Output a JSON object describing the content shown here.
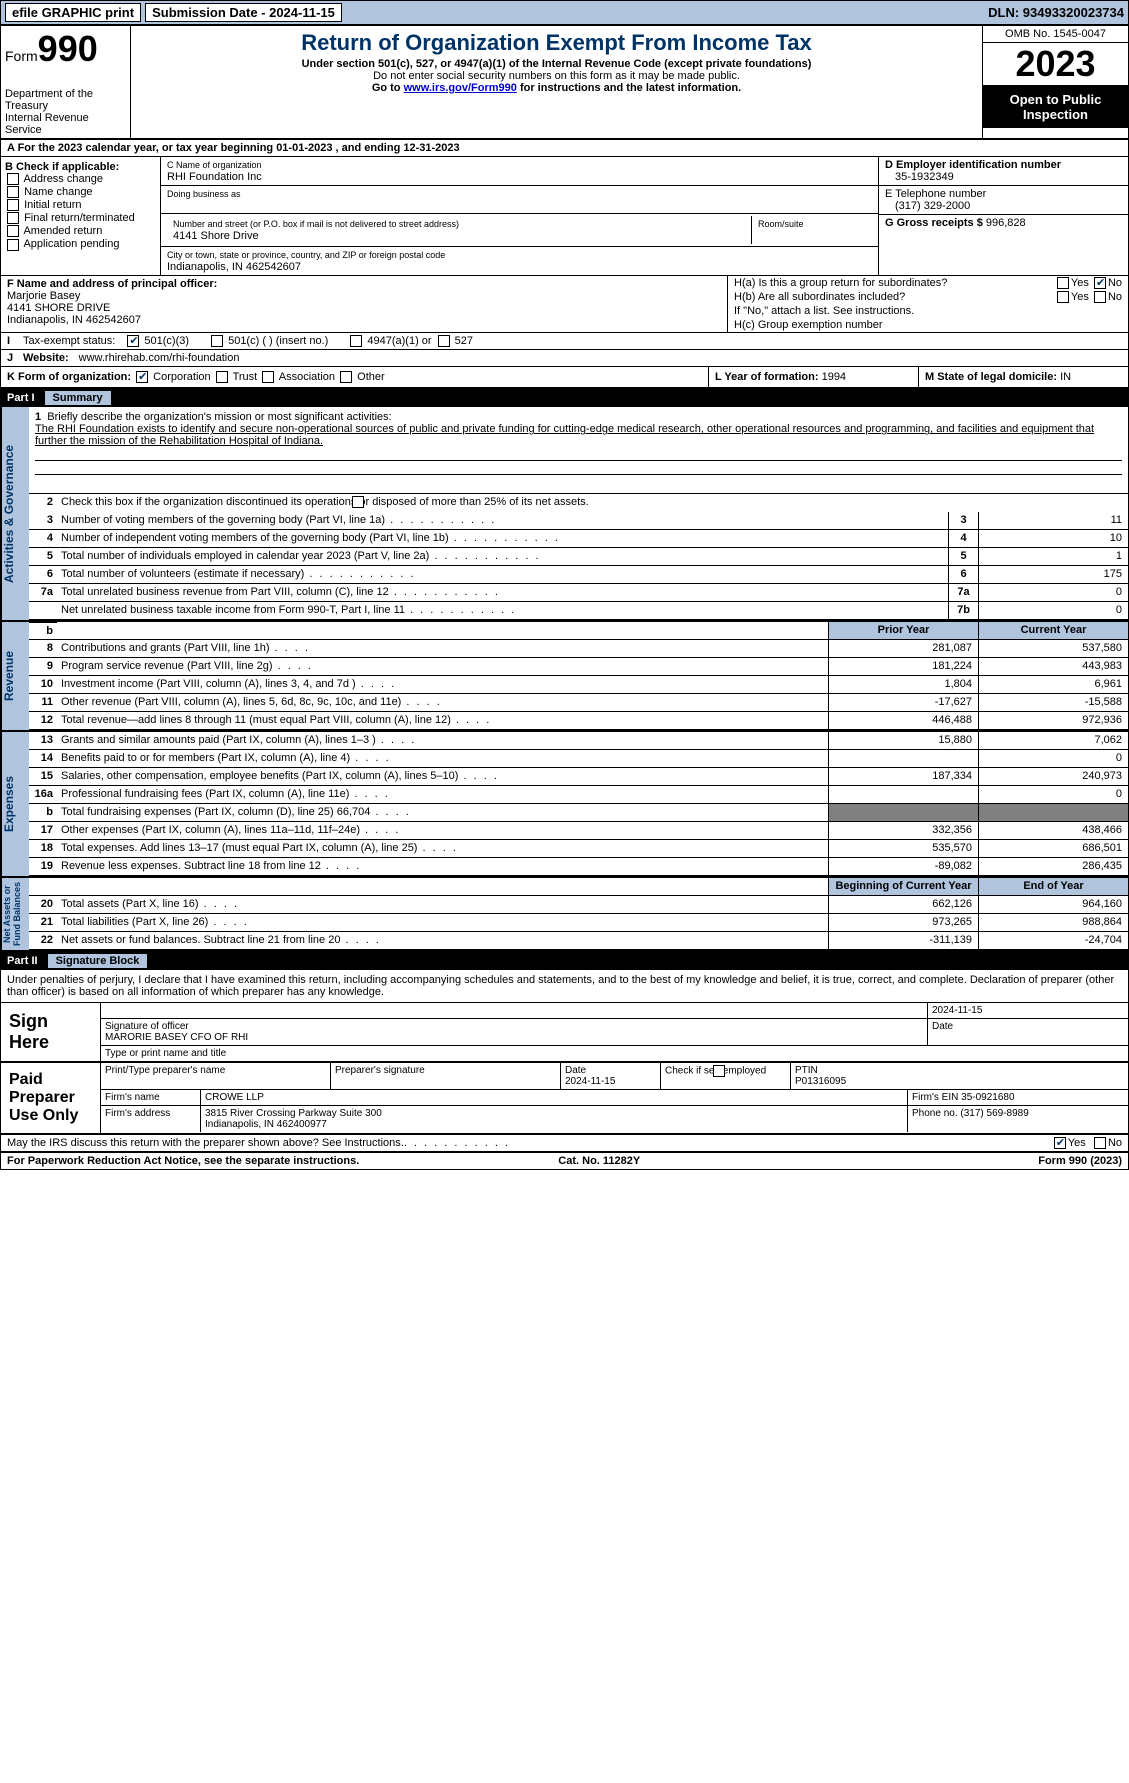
{
  "topbar": {
    "efile": "efile GRAPHIC print",
    "submission": "Submission Date - 2024-11-15",
    "dln": "DLN: 93493320023734"
  },
  "header": {
    "form_word": "Form",
    "form_num": "990",
    "title": "Return of Organization Exempt From Income Tax",
    "subtitle": "Under section 501(c), 527, or 4947(a)(1) of the Internal Revenue Code (except private foundations)",
    "note1": "Do not enter social security numbers on this form as it may be made public.",
    "note2_pre": "Go to ",
    "note2_link": "www.irs.gov/Form990",
    "note2_post": " for instructions and the latest information.",
    "dept": "Department of the Treasury\nInternal Revenue Service",
    "omb": "OMB No. 1545-0047",
    "year": "2023",
    "open": "Open to Public Inspection"
  },
  "a_line": "A For the 2023 calendar year, or tax year beginning 01-01-2023    , and ending 12-31-2023",
  "b": {
    "label": "B Check if applicable:",
    "opts": [
      "Address change",
      "Name change",
      "Initial return",
      "Final return/terminated",
      "Amended return",
      "Application pending"
    ]
  },
  "c": {
    "name_lbl": "C Name of organization",
    "name": "RHI Foundation Inc",
    "dba_lbl": "Doing business as",
    "dba": "",
    "street_lbl": "Number and street (or P.O. box if mail is not delivered to street address)",
    "street": "4141 Shore Drive",
    "room_lbl": "Room/suite",
    "room": "",
    "city_lbl": "City or town, state or province, country, and ZIP or foreign postal code",
    "city": "Indianapolis, IN  462542607"
  },
  "d": {
    "lbl": "D Employer identification number",
    "val": "35-1932349"
  },
  "e": {
    "lbl": "E Telephone number",
    "val": "(317) 329-2000"
  },
  "g": {
    "lbl": "G Gross receipts $",
    "val": "996,828"
  },
  "f": {
    "lbl": "F Name and address of principal officer:",
    "name": "Marjorie Basey",
    "street": "4141 SHORE DRIVE",
    "city": "Indianapolis, IN  462542607"
  },
  "h": {
    "ha": "H(a)  Is this a group return for subordinates?",
    "hb": "H(b)  Are all subordinates included?",
    "hb_note": "If \"No,\" attach a list. See instructions.",
    "hc": "H(c)  Group exemption number",
    "yes": "Yes",
    "no": "No"
  },
  "i": {
    "lbl": "Tax-exempt status:",
    "opts": [
      "501(c)(3)",
      "501(c) (  ) (insert no.)",
      "4947(a)(1) or",
      "527"
    ]
  },
  "j": {
    "lbl": "Website:",
    "val": "www.rhirehab.com/rhi-foundation"
  },
  "k": {
    "lbl": "K Form of organization:",
    "opts": [
      "Corporation",
      "Trust",
      "Association",
      "Other"
    ]
  },
  "l": {
    "lbl": "L Year of formation:",
    "val": "1994"
  },
  "m": {
    "lbl": "M State of legal domicile:",
    "val": "IN"
  },
  "part1": {
    "num": "Part I",
    "title": "Summary"
  },
  "mission": {
    "lbl": "Briefly describe the organization's mission or most significant activities:",
    "text": "The RHI Foundation exists to identify and secure non-operational sources of public and private funding for cutting-edge medical research, other operational resources and programming, and facilities and equipment that further the mission of the Rehabilitation Hospital of Indiana."
  },
  "line2": "Check this box          if the organization discontinued its operations or disposed of more than 25% of its net assets.",
  "gov": {
    "rows": [
      {
        "n": "3",
        "d": "Number of voting members of the governing body (Part VI, line 1a)",
        "box": "3",
        "v": "11"
      },
      {
        "n": "4",
        "d": "Number of independent voting members of the governing body (Part VI, line 1b)",
        "box": "4",
        "v": "10"
      },
      {
        "n": "5",
        "d": "Total number of individuals employed in calendar year 2023 (Part V, line 2a)",
        "box": "5",
        "v": "1"
      },
      {
        "n": "6",
        "d": "Total number of volunteers (estimate if necessary)",
        "box": "6",
        "v": "175"
      },
      {
        "n": "7a",
        "d": "Total unrelated business revenue from Part VIII, column (C), line 12",
        "box": "7a",
        "v": "0"
      },
      {
        "n": "",
        "d": "Net unrelated business taxable income from Form 990-T, Part I, line 11",
        "box": "7b",
        "v": "0"
      }
    ]
  },
  "col_hdr": {
    "prior": "Prior Year",
    "current": "Current Year"
  },
  "rev": {
    "rows": [
      {
        "n": "8",
        "d": "Contributions and grants (Part VIII, line 1h)",
        "p": "281,087",
        "c": "537,580"
      },
      {
        "n": "9",
        "d": "Program service revenue (Part VIII, line 2g)",
        "p": "181,224",
        "c": "443,983"
      },
      {
        "n": "10",
        "d": "Investment income (Part VIII, column (A), lines 3, 4, and 7d )",
        "p": "1,804",
        "c": "6,961"
      },
      {
        "n": "11",
        "d": "Other revenue (Part VIII, column (A), lines 5, 6d, 8c, 9c, 10c, and 11e)",
        "p": "-17,627",
        "c": "-15,588"
      },
      {
        "n": "12",
        "d": "Total revenue—add lines 8 through 11 (must equal Part VIII, column (A), line 12)",
        "p": "446,488",
        "c": "972,936"
      }
    ]
  },
  "exp": {
    "rows": [
      {
        "n": "13",
        "d": "Grants and similar amounts paid (Part IX, column (A), lines 1–3 )",
        "p": "15,880",
        "c": "7,062"
      },
      {
        "n": "14",
        "d": "Benefits paid to or for members (Part IX, column (A), line 4)",
        "p": "",
        "c": "0"
      },
      {
        "n": "15",
        "d": "Salaries, other compensation, employee benefits (Part IX, column (A), lines 5–10)",
        "p": "187,334",
        "c": "240,973"
      },
      {
        "n": "16a",
        "d": "Professional fundraising fees (Part IX, column (A), line 11e)",
        "p": "",
        "c": "0"
      },
      {
        "n": "b",
        "d": "Total fundraising expenses (Part IX, column (D), line 25) 66,704",
        "p": "GRAY",
        "c": "GRAY"
      },
      {
        "n": "17",
        "d": "Other expenses (Part IX, column (A), lines 11a–11d, 11f–24e)",
        "p": "332,356",
        "c": "438,466"
      },
      {
        "n": "18",
        "d": "Total expenses. Add lines 13–17 (must equal Part IX, column (A), line 25)",
        "p": "535,570",
        "c": "686,501"
      },
      {
        "n": "19",
        "d": "Revenue less expenses. Subtract line 18 from line 12",
        "p": "-89,082",
        "c": "286,435"
      }
    ]
  },
  "net_hdr": {
    "begin": "Beginning of Current Year",
    "end": "End of Year"
  },
  "net": {
    "rows": [
      {
        "n": "20",
        "d": "Total assets (Part X, line 16)",
        "p": "662,126",
        "c": "964,160"
      },
      {
        "n": "21",
        "d": "Total liabilities (Part X, line 26)",
        "p": "973,265",
        "c": "988,864"
      },
      {
        "n": "22",
        "d": "Net assets or fund balances. Subtract line 21 from line 20",
        "p": "-311,139",
        "c": "-24,704"
      }
    ]
  },
  "vtabs": {
    "gov": "Activities & Governance",
    "rev": "Revenue",
    "exp": "Expenses",
    "net": "Net Assets or\nFund Balances"
  },
  "part2": {
    "num": "Part II",
    "title": "Signature Block"
  },
  "sig_intro": "Under penalties of perjury, I declare that I have examined this return, including accompanying schedules and statements, and to the best of my knowledge and belief, it is true, correct, and complete. Declaration of preparer (other than officer) is based on all information of which preparer has any knowledge.",
  "sign_here": {
    "lbl": "Sign Here",
    "sig_lbl": "Signature of officer",
    "name": "MARORIE BASEY CFO OF RHI",
    "type_lbl": "Type or print name and title",
    "date_lbl": "Date",
    "date": "2024-11-15"
  },
  "paid": {
    "lbl": "Paid Preparer Use Only",
    "print_lbl": "Print/Type preparer's name",
    "sig_lbl": "Preparer's signature",
    "date_lbl": "Date",
    "date": "2024-11-15",
    "check_lbl": "Check          if self-employed",
    "ptin_lbl": "PTIN",
    "ptin": "P01316095",
    "firm_name_lbl": "Firm's name",
    "firm_name": "CROWE LLP",
    "firm_ein_lbl": "Firm's EIN",
    "firm_ein": "35-0921680",
    "firm_addr_lbl": "Firm's address",
    "firm_addr": "3815 River Crossing Parkway Suite 300\nIndianapolis, IN  462400977",
    "phone_lbl": "Phone no.",
    "phone": "(317) 569-8989"
  },
  "may": {
    "text": "May the IRS discuss this return with the preparer shown above? See Instructions.",
    "yes": "Yes",
    "no": "No"
  },
  "footer": {
    "left": "For Paperwork Reduction Act Notice, see the separate instructions.",
    "mid": "Cat. No. 11282Y",
    "right": "Form 990 (2023)"
  }
}
